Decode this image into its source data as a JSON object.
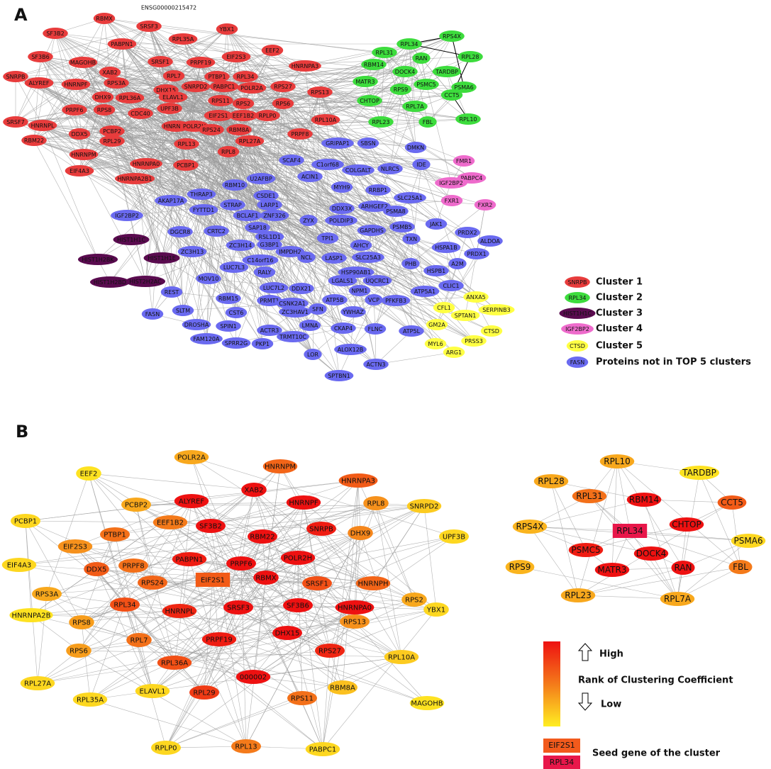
{
  "panel_a": {
    "label": "A",
    "top_label": "ENSG00000215472",
    "clusters": [
      {
        "name": "Cluster 1",
        "sample": "SNRPB",
        "nodes": [
          "RBMX",
          "SRSF3",
          "YBX1",
          "SF3B2",
          "PABPN1",
          "RPL35A",
          "SF3B6",
          "MAGOHB",
          "SRSF1",
          "PRPF19",
          "EIF2S3",
          "EEF2",
          "HNRNPA3",
          "ALYREF",
          "HNRNPF",
          "XAB2",
          "RPS3A",
          "RPL7",
          "PTBP1",
          "RPL34",
          "SNRPB",
          "DHX9",
          "RPL36A",
          "DHX15",
          "SNRPD2",
          "PABPC1",
          "POLR2A",
          "RPS27",
          "RPS13",
          "PRPF6",
          "RPS8",
          "CDC40",
          "ELAVL1",
          "UPF3B",
          "RPS11",
          "RPS2",
          "RPS6",
          "SRSF7",
          "HNRNPL",
          "EIF2S1",
          "EEF1B2",
          "RPLP0",
          "RPL10A",
          "DDX5",
          "PCBP2",
          "HNRNPH",
          "POLR2H",
          "RPS24",
          "RBM8A",
          "PRPF8",
          "RBM22",
          "RPL29",
          "RPL13",
          "RPL27A",
          "HNRNPM",
          "RPL8",
          "HNRNPA0",
          "PCBP1",
          "EIF4A3",
          "HNRNPA2B1"
        ]
      },
      {
        "name": "Cluster 2",
        "sample": "RPL34",
        "nodes": [
          "RPS4X",
          "RPL34",
          "RPL31",
          "RAN",
          "RPL28",
          "RBM14",
          "DOCK4",
          "TARDBP",
          "MATR3",
          "PSMC5",
          "PSMA6",
          "RPS9",
          "CHTOP",
          "CCT5",
          "RPL7A",
          "RPL10",
          "RPL23",
          "FBL"
        ]
      },
      {
        "name": "Cluster 3",
        "sample": "HIST1H1C",
        "nodes": [
          "HIST1H1C",
          "HIST1H1E",
          "HIST1H2BK",
          "HIST2H2AC",
          "HIST1H2BD"
        ]
      },
      {
        "name": "Cluster 4",
        "sample": "IGF2BP2",
        "nodes": [
          "FMR1",
          "PABPC4",
          "IGF2BP2",
          "FXR1",
          "FXR2"
        ]
      },
      {
        "name": "Cluster 5",
        "sample": "CTSD",
        "nodes": [
          "ANXA5",
          "CFL1",
          "SPTAN1",
          "SERPINB3",
          "GM2A",
          "CTSD",
          "PRSS3",
          "MYL6",
          "ARG1"
        ]
      },
      {
        "name": "Proteins not in TOP 5 clusters",
        "sample": "FASN",
        "nodes": [
          "GRIPAP1",
          "SBSN",
          "DMKN",
          "SCAF4",
          "C1orf68",
          "ACIN1",
          "COLGALT",
          "NLRC5",
          "IDE",
          "U2AFBP",
          "RBM10",
          "MYH9",
          "RRBP1",
          "SLC25A1",
          "THRAP3",
          "AKAP17A",
          "CSDE1",
          "FYTTD1",
          "STRAP",
          "LARP1",
          "ZNF326",
          "BCLAF1",
          "DDX3X",
          "ARHGEF2",
          "PSMA8",
          "ZYX",
          "POLDIP3",
          "SAP18",
          "IGF2BP2",
          "DGCR8",
          "CRTC2",
          "RSL1D1",
          "TPI1",
          "GAPDHS",
          "PSMB5",
          "JAK1",
          "PRDX2",
          "ZC3H13",
          "ZC3H14",
          "G3BP1",
          "IMPDH2",
          "AHCY",
          "TXN",
          "ALDOA",
          "HSPA1B",
          "PRDX1",
          "C14orf16",
          "NCL",
          "LASP1",
          "SLC25A3",
          "LUC7L3",
          "RALY",
          "HSP90AB1",
          "PHB",
          "A2M",
          "HSPB1",
          "MOV10",
          "REST",
          "LGALS1",
          "UQCRC1",
          "ATP5A1",
          "CLIC1",
          "LUC7L2",
          "DDX21",
          "NPM1",
          "RBM15",
          "PRMT1",
          "CSNK2A1",
          "ZC3HAV1",
          "ATP5B",
          "VCP",
          "SLTM",
          "CST6",
          "SFN",
          "YWHAZ",
          "PFKFB3",
          "ATP5L",
          "FASN",
          "DROSHA",
          "SPIN1",
          "ACTR3",
          "LMNA",
          "CKAP4",
          "FLNC",
          "TRMT10C",
          "FAM120A",
          "SPRR2G",
          "PKP1",
          "ALOX12B",
          "LOR",
          "ACTN3",
          "SPTBN1"
        ]
      }
    ]
  },
  "panel_b": {
    "label": "B",
    "clusters": [
      {
        "nodes": [
          "EEF2",
          "POLR2A",
          "HNRNPM",
          "HNRNPA3",
          "ALYREF",
          "XAB2",
          "HNRNPF",
          "SNRPD2",
          "PCBP2",
          "RPL8",
          "PCBP1",
          "PTBP1",
          "EEF1B2",
          "SF3B2",
          "RBM22",
          "SNRPB",
          "EIF2S3",
          "DHX9",
          "UPF3B",
          "PRPF8",
          "PABPN1",
          "PRPF6",
          "POLR2H",
          "EIF4A3",
          "DDX5",
          "SRSF1",
          "HNRNPH",
          "RPS24",
          "EIF2S1",
          "RBMX",
          "RPS2",
          "RPS3A",
          "HNRNPA0",
          "HNRNPA2B",
          "RPL34",
          "HNRNPL",
          "SRSF3",
          "SF3B6",
          "YBX1",
          "RPS8",
          "RPS13",
          "RPS6",
          "RPL7",
          "PRPF19",
          "DHX15",
          "RPS27",
          "RPL10A",
          "RPL36A",
          "RPL27A",
          "000002",
          "RBM8A",
          "ELAVL1",
          "RPL29",
          "RPL35A",
          "RPS11",
          "MAGOHB",
          "RPLP0",
          "RPL13",
          "PABPC1"
        ]
      },
      {
        "nodes": [
          "RPL10",
          "TARDBP",
          "RPL28",
          "RPL31",
          "RBM14",
          "CCT5",
          "RPL34",
          "CHTOP",
          "RPS4X",
          "PSMA6",
          "PSMC5",
          "DOCK4",
          "MATR3",
          "RAN",
          "FBL",
          "RPS9",
          "RPL23",
          "RPL7A"
        ]
      }
    ],
    "legend": {
      "high": "High",
      "title": "Rank of Clustering Coefficient",
      "low": "Low",
      "seed_samples": [
        "EIF2S1",
        "RPL34"
      ],
      "seed_label": "Seed gene of the cluster"
    }
  }
}
